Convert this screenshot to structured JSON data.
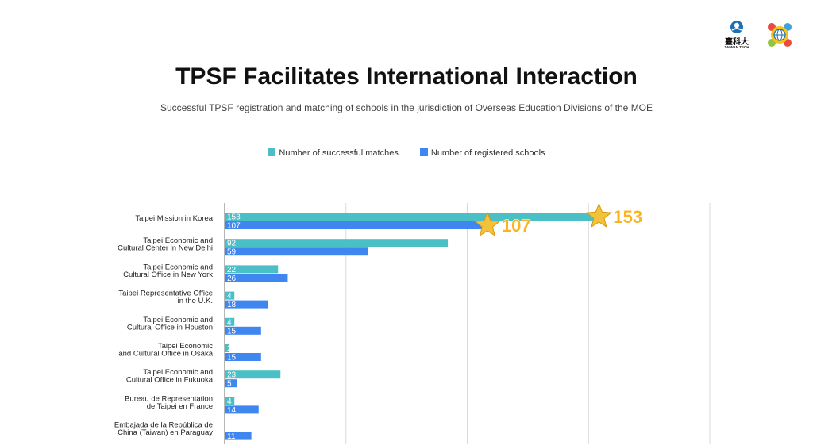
{
  "logos": {
    "taiwan_tech_cn": "臺科大",
    "taiwan_tech_en": "TAIWAN TECH"
  },
  "colors": {
    "matches": "#4bbfc6",
    "registered": "#3f86f0",
    "gridline": "#d9d9d9",
    "axis": "#9e9e9e",
    "star": "#f2c23a",
    "highlight_text": "#fbb41e"
  },
  "chart_data": {
    "type": "bar",
    "orientation": "horizontal",
    "title": "TPSF Facilitates International Interaction",
    "subtitle": "Successful TPSF registration and matching of schools in the jurisdiction of Overseas Education Divisions of the MOE",
    "legend_position": "top",
    "grid": true,
    "xlim": [
      0,
      200
    ],
    "categories": [
      [
        "Taipei Mission in Korea"
      ],
      [
        "Taipei Economic and",
        "Cultural Center in New Delhi"
      ],
      [
        "Taipei Economic and",
        "Cultural Office in New York"
      ],
      [
        "Taipei Representative Office",
        "in the U.K."
      ],
      [
        "Taipei Economic and",
        "Cultural Office in Houston"
      ],
      [
        "Taipei Economic",
        "and Cultural Office in Osaka"
      ],
      [
        "Taipei Economic and",
        "Cultural Office in Fukuoka"
      ],
      [
        "Bureau de Representation",
        "de Taipei en France"
      ],
      [
        "Embajada de la República de",
        "China (Taiwan) en Paraguay"
      ]
    ],
    "series": [
      {
        "name": "Number of successful matches",
        "values": [
          153,
          92,
          22,
          4,
          4,
          2,
          23,
          4,
          0
        ]
      },
      {
        "name": "Number of registered schools",
        "values": [
          107,
          59,
          26,
          18,
          15,
          15,
          5,
          14,
          11
        ]
      }
    ],
    "highlights": [
      {
        "series": 0,
        "category": 0,
        "label": "153"
      },
      {
        "series": 1,
        "category": 0,
        "label": "107"
      }
    ]
  }
}
